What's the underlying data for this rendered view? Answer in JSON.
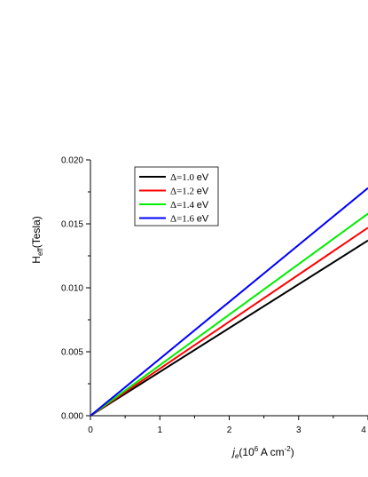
{
  "chart_data": {
    "type": "line",
    "xlabel": {
      "italic": "j",
      "sub": "e",
      "text_open": "(10",
      "sup": "6",
      "text_mid": " A cm",
      "sup2": "-2",
      "text_close": ")"
    },
    "ylabel": {
      "main": "H",
      "sub": "eff",
      "rest": "(Tesla)"
    },
    "xlim": [
      0,
      4
    ],
    "ylim": [
      0,
      0.02
    ],
    "x_ticks": [
      "0",
      "1",
      "2",
      "3",
      "4"
    ],
    "y_ticks": [
      "0.000",
      "0.005",
      "0.010",
      "0.015",
      "0.020"
    ],
    "legend_position": "top-left",
    "grid": false,
    "series": [
      {
        "name": "Δ=1.0 eV",
        "delta": "Δ=1.0",
        "unit": "eV",
        "color": "#000000",
        "x": [
          0,
          4
        ],
        "y": [
          0,
          0.0137
        ]
      },
      {
        "name": "Δ=1.2 eV",
        "delta": "Δ=1.2",
        "unit": "eV",
        "color": "#ff0000",
        "x": [
          0,
          4
        ],
        "y": [
          0,
          0.0147
        ]
      },
      {
        "name": "Δ=1.4 eV",
        "delta": "Δ=1.4",
        "unit": "eV",
        "color": "#00ee00",
        "x": [
          0,
          4
        ],
        "y": [
          0,
          0.0158
        ]
      },
      {
        "name": "Δ=1.6 eV",
        "delta": "Δ=1.6",
        "unit": "eV",
        "color": "#0000ff",
        "x": [
          0,
          4
        ],
        "y": [
          0,
          0.0178
        ]
      }
    ]
  }
}
